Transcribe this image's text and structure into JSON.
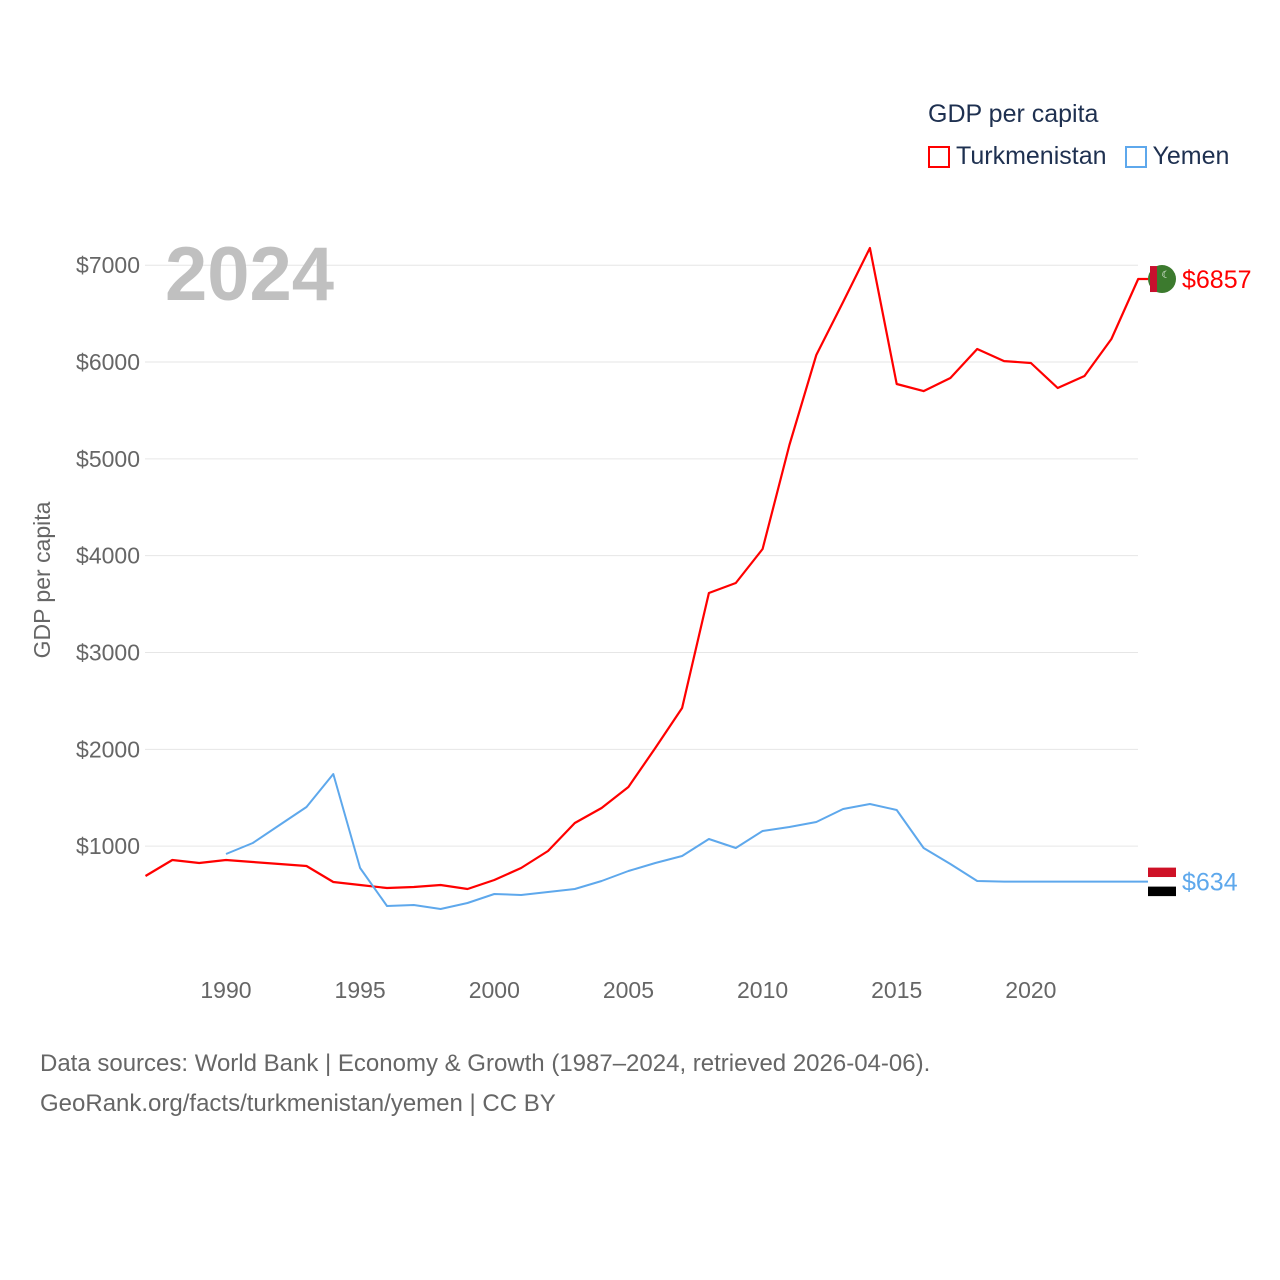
{
  "chart_data": {
    "type": "line",
    "title": "GDP per capita",
    "year_label": "2024",
    "ylabel": "GDP per capita",
    "xlabel": "",
    "xlim": [
      1987,
      2024
    ],
    "ylim": [
      0,
      7500
    ],
    "x_ticks": [
      1990,
      1995,
      2000,
      2005,
      2010,
      2015,
      2020
    ],
    "y_ticks": [
      1000,
      2000,
      3000,
      4000,
      5000,
      6000,
      7000
    ],
    "y_tick_labels": [
      "$1000",
      "$2000",
      "$3000",
      "$4000",
      "$5000",
      "$6000",
      "$7000"
    ],
    "grid": true,
    "legend_position": "top-right",
    "series": [
      {
        "name": "Turkmenistan",
        "color": "#ff0000",
        "end_label": "$6857",
        "x": [
          1987,
          1988,
          1989,
          1990,
          1991,
          1992,
          1993,
          1994,
          1995,
          1996,
          1997,
          1998,
          1999,
          2000,
          2001,
          2002,
          2003,
          2004,
          2005,
          2006,
          2007,
          2008,
          2009,
          2010,
          2011,
          2012,
          2013,
          2014,
          2015,
          2016,
          2017,
          2018,
          2019,
          2020,
          2021,
          2022,
          2023,
          2024
        ],
        "values": [
          692,
          857,
          826,
          857,
          837,
          816,
          795,
          630,
          599,
          568,
          578,
          599,
          558,
          651,
          775,
          950,
          1239,
          1394,
          1611,
          2014,
          2427,
          3615,
          3718,
          4069,
          5143,
          6072,
          6620,
          7178,
          5773,
          5700,
          5835,
          6134,
          6010,
          5990,
          5732,
          5856,
          6238,
          6857
        ]
      },
      {
        "name": "Yemen",
        "color": "#5ea8ec",
        "end_label": "$634",
        "x": [
          1990,
          1991,
          1992,
          1993,
          1994,
          1995,
          1996,
          1997,
          1998,
          1999,
          2000,
          2001,
          2002,
          2003,
          2004,
          2005,
          2006,
          2007,
          2008,
          2009,
          2010,
          2011,
          2012,
          2013,
          2014,
          2015,
          2016,
          2017,
          2018,
          2019,
          2020,
          2021,
          2022,
          2023,
          2024
        ],
        "values": [
          919,
          1033,
          1219,
          1405,
          1745,
          775,
          382,
          392,
          351,
          413,
          506,
          496,
          527,
          558,
          640,
          744,
          826,
          898,
          1074,
          981,
          1157,
          1198,
          1250,
          1384,
          1436,
          1374,
          981,
          816,
          640,
          634,
          634,
          634,
          634,
          634,
          634
        ]
      }
    ]
  },
  "footer": {
    "line1": "Data sources: World Bank | Economy & Growth (1987–2024, retrieved 2026-04-06).",
    "line2": "GeoRank.org/facts/turkmenistan/yemen | CC BY"
  }
}
